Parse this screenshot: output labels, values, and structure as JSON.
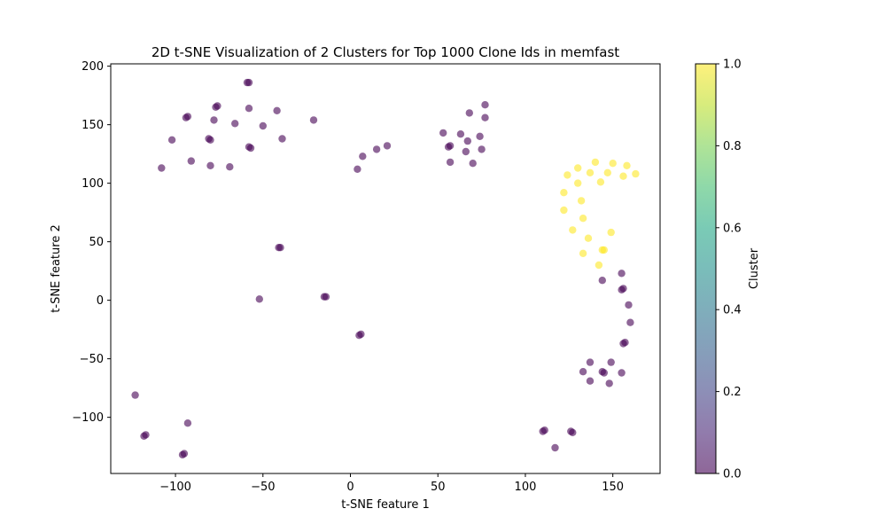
{
  "chart_data": {
    "type": "scatter",
    "title": "2D t-SNE Visualization of 2 Clusters for Top 1000 Clone Ids in memfast",
    "xlabel": "t-SNE feature 1",
    "ylabel": "t-SNE feature 2",
    "xlim": [
      -137,
      177
    ],
    "ylim": [
      -148,
      202
    ],
    "xticks": [
      -100,
      -50,
      0,
      50,
      100,
      150
    ],
    "xtick_labels": [
      "−100",
      "−50",
      "0",
      "50",
      "100",
      "150"
    ],
    "yticks": [
      -100,
      -50,
      0,
      50,
      100,
      150,
      200
    ],
    "ytick_labels": [
      "−100",
      "−50",
      "0",
      "50",
      "100",
      "150",
      "200"
    ],
    "grid": false,
    "colorbar": {
      "label": "Cluster",
      "colormap": "viridis",
      "range": [
        0.0,
        1.0
      ],
      "ticks": [
        0.0,
        0.2,
        0.4,
        0.6,
        0.8,
        1.0
      ],
      "tick_labels": [
        "0.0",
        "0.2",
        "0.4",
        "0.6",
        "0.8",
        "1.0"
      ]
    },
    "marker_alpha": 0.6,
    "colors": {
      "cluster0": "#440154",
      "cluster1": "#fde725"
    },
    "series": [
      {
        "cluster": 0,
        "points": [
          [
            -59,
            186
          ],
          [
            -58,
            186
          ],
          [
            -93,
            157
          ],
          [
            -94,
            156
          ],
          [
            -76,
            166
          ],
          [
            -77,
            165
          ],
          [
            -58,
            164
          ],
          [
            -42,
            162
          ],
          [
            -21,
            154
          ],
          [
            -78,
            154
          ],
          [
            -66,
            151
          ],
          [
            -50,
            149
          ],
          [
            -81,
            138
          ],
          [
            -80,
            137
          ],
          [
            -102,
            137
          ],
          [
            -39,
            138
          ],
          [
            -58,
            131
          ],
          [
            -57,
            130
          ],
          [
            -91,
            119
          ],
          [
            -108,
            113
          ],
          [
            -80,
            115
          ],
          [
            -69,
            114
          ],
          [
            7,
            123
          ],
          [
            4,
            112
          ],
          [
            15,
            129
          ],
          [
            21,
            132
          ],
          [
            68,
            160
          ],
          [
            77,
            167
          ],
          [
            77,
            156
          ],
          [
            53,
            143
          ],
          [
            63,
            142
          ],
          [
            74,
            140
          ],
          [
            67,
            136
          ],
          [
            57,
            132
          ],
          [
            56,
            131
          ],
          [
            75,
            129
          ],
          [
            66,
            127
          ],
          [
            57,
            118
          ],
          [
            70,
            117
          ],
          [
            -41,
            45
          ],
          [
            -40,
            45
          ],
          [
            -52,
            1
          ],
          [
            -15,
            3
          ],
          [
            -14,
            3
          ],
          [
            5,
            -30
          ],
          [
            6,
            -29
          ],
          [
            155,
            23
          ],
          [
            144,
            17
          ],
          [
            156,
            10
          ],
          [
            155,
            9
          ],
          [
            159,
            -4
          ],
          [
            160,
            -19
          ],
          [
            157,
            -36
          ],
          [
            156,
            -37
          ],
          [
            137,
            -53
          ],
          [
            149,
            -53
          ],
          [
            133,
            -61
          ],
          [
            144,
            -61
          ],
          [
            145,
            -62
          ],
          [
            155,
            -62
          ],
          [
            137,
            -69
          ],
          [
            148,
            -71
          ],
          [
            -123,
            -81
          ],
          [
            -118,
            -116
          ],
          [
            -117,
            -115
          ],
          [
            -93,
            -105
          ],
          [
            -95,
            -131
          ],
          [
            -96,
            -132
          ],
          [
            110,
            -112
          ],
          [
            111,
            -111
          ],
          [
            126,
            -112
          ],
          [
            127,
            -113
          ],
          [
            117,
            -126
          ]
        ]
      },
      {
        "cluster": 1,
        "points": [
          [
            140,
            118
          ],
          [
            150,
            117
          ],
          [
            158,
            115
          ],
          [
            130,
            113
          ],
          [
            147,
            109
          ],
          [
            137,
            109
          ],
          [
            163,
            108
          ],
          [
            124,
            107
          ],
          [
            156,
            106
          ],
          [
            143,
            101
          ],
          [
            130,
            100
          ],
          [
            122,
            92
          ],
          [
            132,
            85
          ],
          [
            122,
            77
          ],
          [
            133,
            70
          ],
          [
            127,
            60
          ],
          [
            149,
            58
          ],
          [
            136,
            53
          ],
          [
            145,
            43
          ],
          [
            144,
            43
          ],
          [
            133,
            40
          ],
          [
            142,
            30
          ]
        ]
      }
    ]
  }
}
